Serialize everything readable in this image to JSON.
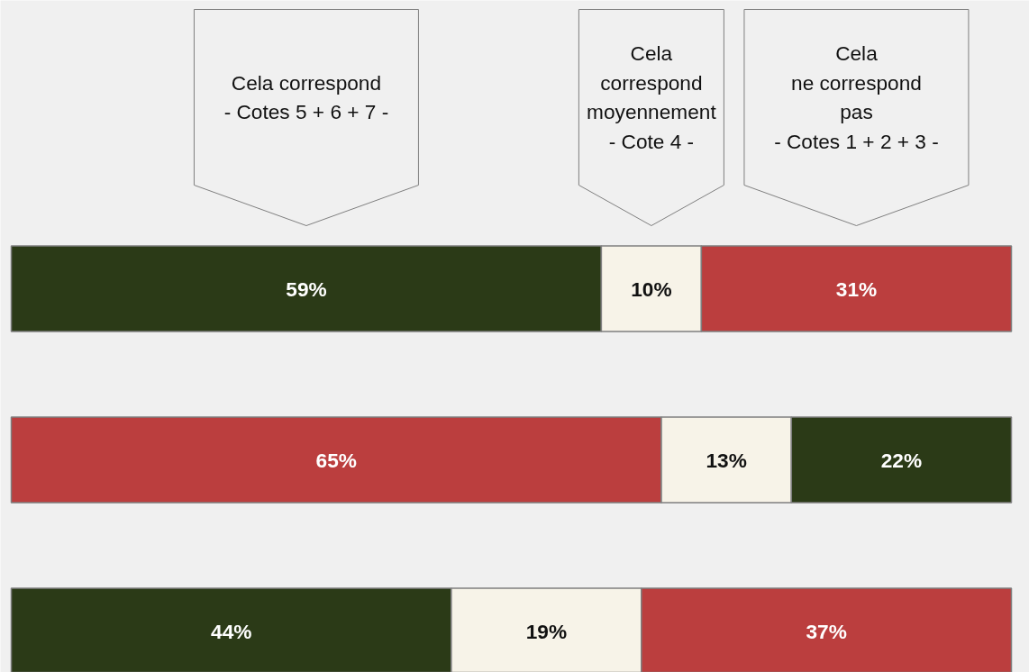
{
  "chart_data": {
    "type": "bar",
    "orientation": "horizontal",
    "stacked": true,
    "tick_labels": false,
    "categories": [
      null,
      null,
      null
    ],
    "series": [
      {
        "colors": [
          "#2b3a17",
          "#bb3e3e",
          "#2b3a17"
        ],
        "values": [
          59,
          65,
          44
        ],
        "value_labels": [
          "59%",
          "65%",
          "44%"
        ]
      },
      {
        "color": "#f7f3e8",
        "values": [
          10,
          13,
          19
        ],
        "value_labels": [
          "10%",
          "13%",
          "19%"
        ]
      },
      {
        "colors": [
          "#bb3e3e",
          "#2b3a17",
          "#bb3e3e"
        ],
        "values": [
          31,
          22,
          37
        ],
        "value_labels": [
          "31%",
          "22%",
          "37%"
        ]
      }
    ],
    "annotations": [
      "Cela correspond\n- Cotes 5 + 6 + 7 -",
      "Cela\ncorrespond\nmoyennement\n- Cote 4 -",
      "Cela\nne correspond\npas\n- Cotes 1 + 2 + 3 -"
    ]
  }
}
